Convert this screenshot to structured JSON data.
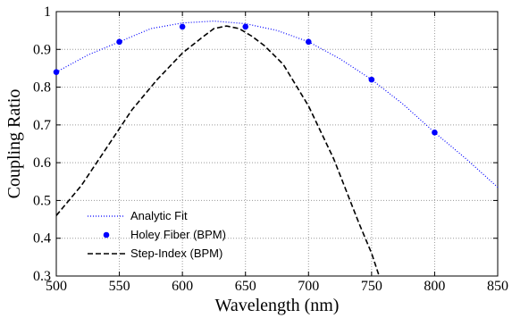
{
  "chart_data": {
    "type": "line",
    "xlabel": "Wavelength (nm)",
    "ylabel": "Coupling Ratio",
    "xlim": [
      500,
      850
    ],
    "ylim": [
      0.3,
      1.0
    ],
    "xticks": [
      500,
      550,
      600,
      650,
      700,
      750,
      800,
      850
    ],
    "yticks": [
      0.3,
      0.4,
      0.5,
      0.6,
      0.7,
      0.8,
      0.9,
      1.0
    ],
    "xtick_labels": [
      "500",
      "550",
      "600",
      "650",
      "700",
      "750",
      "800",
      "850"
    ],
    "ytick_labels": [
      "0.3",
      "0.4",
      "0.5",
      "0.6",
      "0.7",
      "0.8",
      "0.9",
      "1"
    ],
    "grid": true,
    "legend_position": "bottom-left",
    "series": [
      {
        "name": "Analytic Fit",
        "style": "dotted",
        "color": "#0000ff",
        "x": [
          500,
          525,
          550,
          575,
          600,
          625,
          650,
          675,
          700,
          725,
          750,
          775,
          800,
          825,
          850
        ],
        "y": [
          0.84,
          0.885,
          0.92,
          0.955,
          0.97,
          0.975,
          0.968,
          0.95,
          0.92,
          0.875,
          0.82,
          0.755,
          0.68,
          0.61,
          0.535
        ]
      },
      {
        "name": "Holey Fiber (BPM)",
        "style": "markers",
        "color": "#0000ff",
        "x": [
          500,
          550,
          600,
          650,
          700,
          750,
          800
        ],
        "y": [
          0.84,
          0.92,
          0.96,
          0.96,
          0.92,
          0.82,
          0.68
        ]
      },
      {
        "name": "Step-Index (BPM)",
        "style": "dashed",
        "color": "#000000",
        "x": [
          500,
          520,
          540,
          560,
          580,
          600,
          615,
          625,
          635,
          645,
          655,
          665,
          680,
          700,
          720,
          740,
          750,
          756
        ],
        "y": [
          0.46,
          0.54,
          0.64,
          0.74,
          0.82,
          0.89,
          0.93,
          0.955,
          0.962,
          0.955,
          0.935,
          0.91,
          0.86,
          0.75,
          0.61,
          0.44,
          0.36,
          0.3
        ]
      }
    ]
  }
}
